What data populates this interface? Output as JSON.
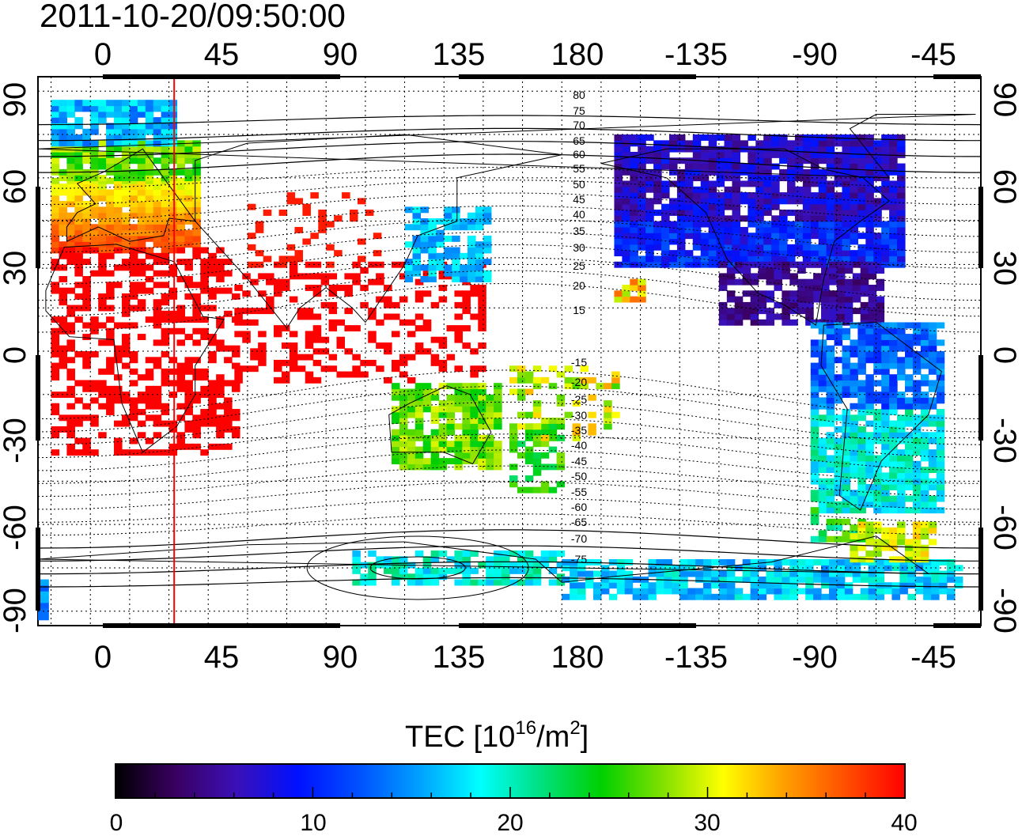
{
  "timestamp": "2011-10-20/09:50:00",
  "map": {
    "lon_ticks": [
      "0",
      "45",
      "90",
      "135",
      "180",
      "-135",
      "-90",
      "-45"
    ],
    "lat_ticks": [
      "90",
      "60",
      "30",
      "0",
      "-30",
      "-60",
      "-90"
    ],
    "lon_range_deg": [
      -20,
      340
    ],
    "lat_range_deg": [
      -95,
      95
    ],
    "grid": "dotted every 15 degrees",
    "contour_labels": [
      "80",
      "75",
      "70",
      "65",
      "60",
      "55",
      "50",
      "45",
      "40",
      "35",
      "30",
      "25",
      "20",
      "15",
      "-15",
      "-20",
      "-25",
      "-30",
      "-35",
      "-40",
      "-45",
      "-50",
      "-55",
      "-60",
      "-65",
      "-70",
      "-75"
    ],
    "meridian_marker_lon_deg": 32,
    "meridian_marker_color": "#ff0000"
  },
  "colorbar": {
    "title_main": "TEC  [10",
    "title_sup1": "16",
    "title_mid": "/m",
    "title_sup2": "2",
    "title_end": "]",
    "ticks": [
      "0",
      "10",
      "20",
      "30",
      "40"
    ],
    "range": [
      0,
      40
    ],
    "colors": [
      "#000000",
      "#3a0062",
      "#3a10b8",
      "#0010ff",
      "#0050ff",
      "#00a0ff",
      "#00ffff",
      "#00e080",
      "#00d000",
      "#80e000",
      "#ffff00",
      "#ffa000",
      "#ff5000",
      "#ff0000"
    ]
  }
}
